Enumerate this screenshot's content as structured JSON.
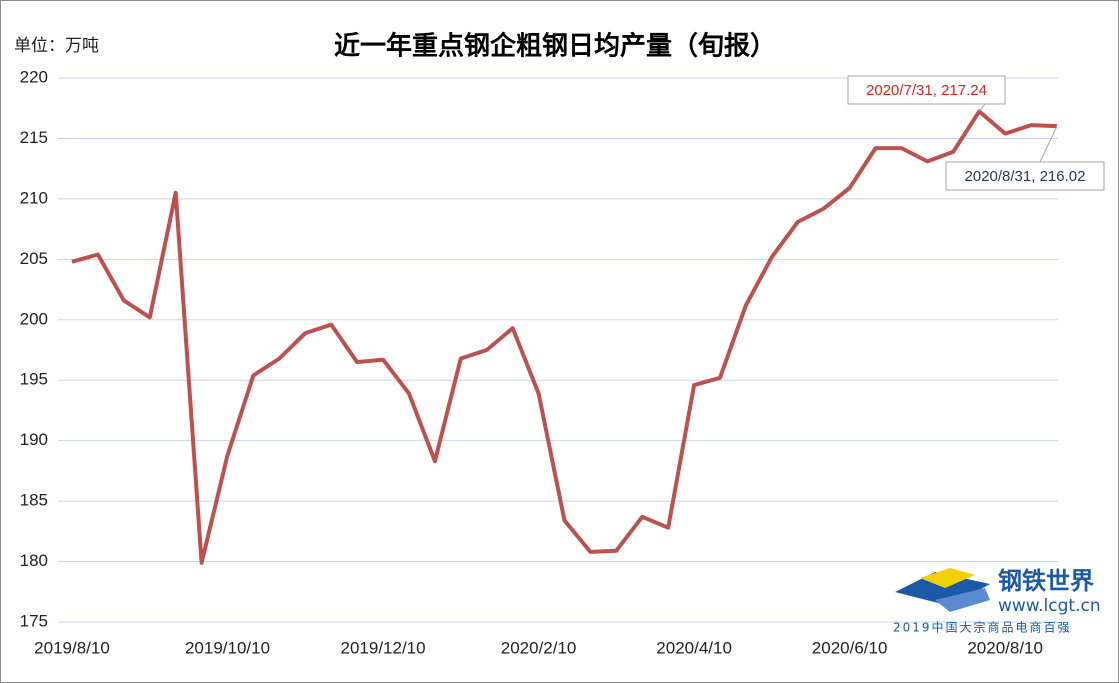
{
  "chart_data": {
    "type": "line",
    "title": "近一年重点钢企粗钢日均产量（旬报）",
    "unit_label": "单位：万吨",
    "categories": [
      "2019/8/10",
      null,
      null,
      null,
      null,
      null,
      "2019/10/10",
      null,
      null,
      null,
      null,
      null,
      "2019/12/10",
      null,
      null,
      null,
      null,
      null,
      "2020/2/10",
      null,
      null,
      null,
      null,
      null,
      "2020/4/10",
      null,
      null,
      null,
      null,
      null,
      "2020/6/10",
      null,
      null,
      null,
      null,
      null,
      "2020/8/10",
      null,
      null
    ],
    "series": [
      {
        "name": "粗钢日均产量",
        "color": "#c0504d",
        "values": [
          204.8,
          205.4,
          201.6,
          200.2,
          210.5,
          179.9,
          188.8,
          195.4,
          196.8,
          198.9,
          199.6,
          196.5,
          196.7,
          193.9,
          188.3,
          196.8,
          197.5,
          199.3,
          193.9,
          183.4,
          180.8,
          180.9,
          183.7,
          182.8,
          194.6,
          195.2,
          201.2,
          205.2,
          208.1,
          209.2,
          210.9,
          214.2,
          214.2,
          213.1,
          213.9,
          217.24,
          215.4,
          216.1,
          216.02
        ]
      }
    ],
    "ylim": [
      175,
      220
    ],
    "yticks": [
      175,
      180,
      185,
      190,
      195,
      200,
      205,
      210,
      215,
      220
    ],
    "grid": true,
    "annotations": [
      "2020/7/31, 217.24",
      "2020/8/31, 216.02"
    ],
    "annotation_colors": [
      "#e02020",
      "#1f3a5a"
    ],
    "logo": {
      "name": "钢铁世界",
      "url": "www.lcgt.cn",
      "tagline": "2019中国大宗商品电商百强"
    }
  }
}
